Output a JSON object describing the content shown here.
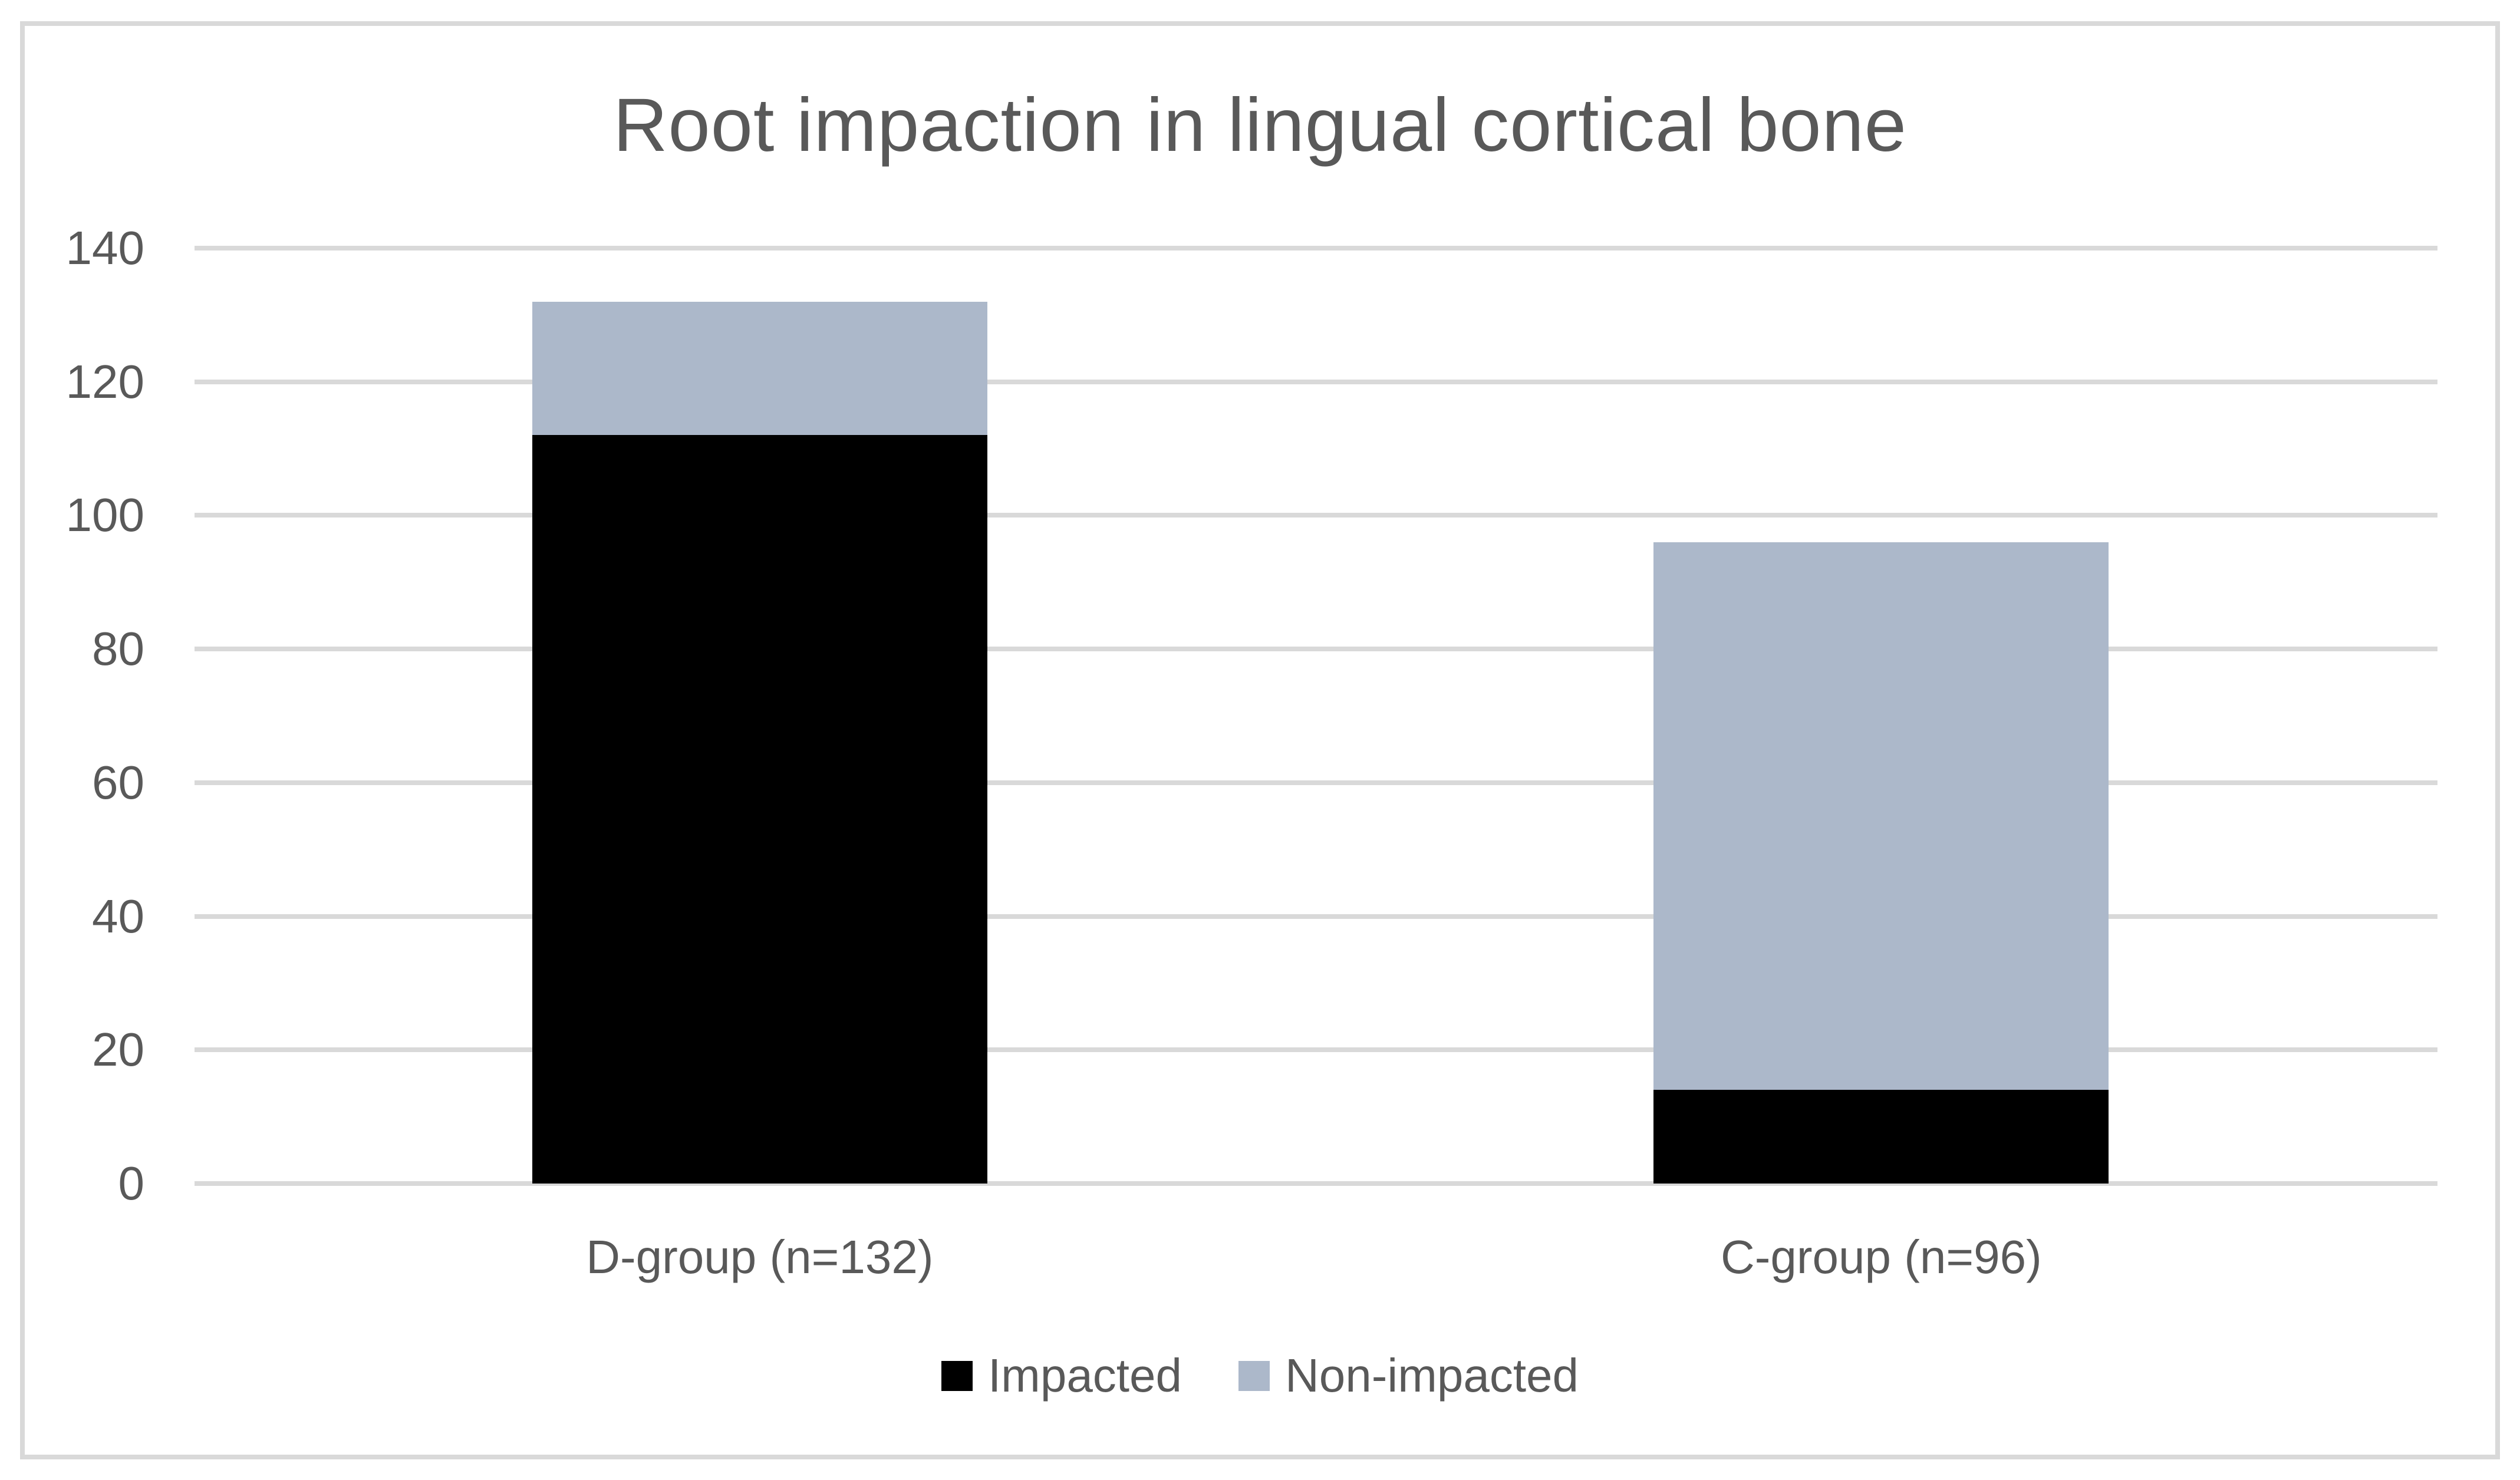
{
  "chart_data": {
    "type": "bar",
    "stacked": true,
    "title": "Root impaction in lingual cortical bone",
    "categories": [
      "D-group (n=132)",
      "C-group (n=96)"
    ],
    "series": [
      {
        "name": "Impacted",
        "color": "#000000",
        "values": [
          112,
          14
        ]
      },
      {
        "name": "Non-impacted",
        "color": "#ACB8CA",
        "values": [
          20,
          82
        ]
      }
    ],
    "xlabel": "",
    "ylabel": "",
    "ylim": [
      0,
      140
    ],
    "yticks": [
      0,
      20,
      40,
      60,
      80,
      100,
      120,
      140
    ],
    "grid": true,
    "legend_position": "bottom",
    "gridline_color": "#D9D9D9",
    "text_color": "#595959",
    "frame_border_color": "#D9D9D9"
  }
}
